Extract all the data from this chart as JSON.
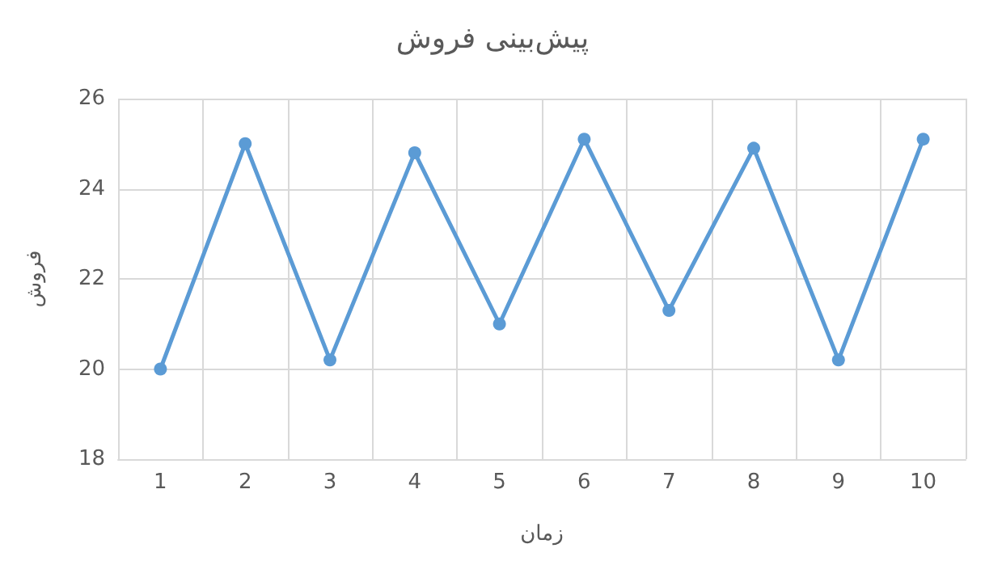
{
  "chart_data": {
    "type": "line",
    "title": "پیش‌بینی فروش",
    "xlabel": "زمان",
    "ylabel": "فروش",
    "categories": [
      "1",
      "2",
      "3",
      "4",
      "5",
      "6",
      "7",
      "8",
      "9",
      "10"
    ],
    "series": [
      {
        "color": "#5b9bd5",
        "values": [
          20,
          25,
          20.2,
          24.8,
          21,
          25.1,
          21.3,
          24.9,
          20.2,
          25.1
        ]
      }
    ],
    "ylim": [
      18,
      26
    ],
    "yticks": [
      18,
      20,
      22,
      24,
      26
    ],
    "grid": true,
    "marker": "circle",
    "line_style": "solid"
  }
}
